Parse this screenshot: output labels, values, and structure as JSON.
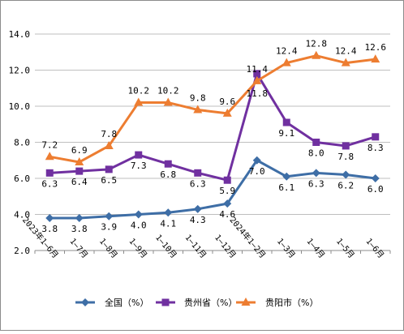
{
  "chart_data": {
    "type": "line",
    "title": "",
    "xlabel": "",
    "ylabel": "",
    "ylim": [
      2.0,
      14.0
    ],
    "yticks": [
      "2.0",
      "4.0",
      "6.0",
      "8.0",
      "10.0",
      "12.0",
      "14.0"
    ],
    "categories": [
      "2023年1—6月",
      "1—7月",
      "1—8月",
      "1—9月",
      "1—10月",
      "1—11月",
      "1—12月",
      "2024年1—2月",
      "1—3月",
      "1—4月",
      "1—5月",
      "1—6月"
    ],
    "grid": "horizontal",
    "legend_position": "bottom",
    "series": [
      {
        "name": "全国（%）",
        "color": "#3e6ea6",
        "marker": "diamond",
        "values": [
          3.8,
          3.8,
          3.9,
          4.0,
          4.1,
          4.3,
          4.6,
          7.0,
          6.1,
          6.3,
          6.2,
          6.0
        ],
        "labels": [
          "3.8",
          "3.8",
          "3.9",
          "4.0",
          "4.1",
          "4.3",
          "4.6",
          "7.0",
          "6.1",
          "6.3",
          "6.2",
          "6.0"
        ]
      },
      {
        "name": "贵州省（%）",
        "color": "#7030a0",
        "marker": "square",
        "values": [
          6.3,
          6.4,
          6.5,
          7.3,
          6.8,
          6.3,
          5.9,
          11.8,
          9.1,
          8.0,
          7.8,
          8.3
        ],
        "labels": [
          "6.3",
          "6.4",
          "6.5",
          "7.3",
          "6.8",
          "6.3",
          "5.9",
          "11.8",
          "9.1",
          "8.0",
          "7.8",
          "8.3"
        ]
      },
      {
        "name": "贵阳市（%）",
        "color": "#ed7d31",
        "marker": "triangle",
        "values": [
          7.2,
          6.9,
          7.8,
          10.2,
          10.2,
          9.8,
          9.6,
          11.4,
          12.4,
          12.8,
          12.4,
          12.6
        ],
        "labels": [
          "7.2",
          "6.9",
          "7.8",
          "10.2",
          "10.2",
          "9.8",
          "9.6",
          "11.4",
          "12.4",
          "12.8",
          "12.4",
          "12.6"
        ]
      }
    ]
  }
}
